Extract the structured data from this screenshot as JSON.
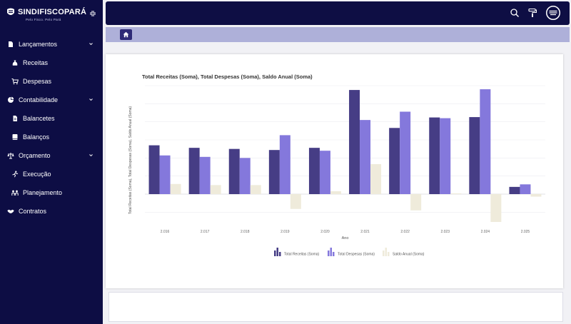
{
  "brand": {
    "name": "SINDIFISCOPARÁ",
    "slogan": "Pelo Fisco. Pelo Pará"
  },
  "sidebar": {
    "items": [
      {
        "label": "Lançamentos",
        "icon": "file-icon",
        "expandable": true
      },
      {
        "label": "Receitas",
        "icon": "money-bag-icon",
        "expandable": false
      },
      {
        "label": "Despesas",
        "icon": "cart-icon",
        "expandable": false
      },
      {
        "label": "Contabilidade",
        "icon": "pie-chart-icon",
        "expandable": true
      },
      {
        "label": "Balancetes",
        "icon": "document-icon",
        "expandable": false
      },
      {
        "label": "Balanços",
        "icon": "book-icon",
        "expandable": false
      },
      {
        "label": "Orçamento",
        "icon": "scale-icon",
        "expandable": true
      },
      {
        "label": "Execução",
        "icon": "running-icon",
        "expandable": false
      },
      {
        "label": "Planejamento",
        "icon": "people-icon",
        "expandable": false
      },
      {
        "label": "Contratos",
        "icon": "handshake-icon",
        "expandable": false
      }
    ]
  },
  "topbar": {
    "icons": [
      "search-icon",
      "paint-roller-icon",
      "avatar-icon"
    ]
  },
  "colors": {
    "sidebar": "#0d0d44",
    "receitas": "#463d85",
    "despesas": "#8478dc",
    "saldo": "#efebdb",
    "crumbbar": "#aeb0d9"
  },
  "chart_data": {
    "type": "bar",
    "title": "Total Receitas (Soma), Total Despesas (Soma), Saldo Anual (Soma)",
    "xlabel": "Ano",
    "ylabel": "Total Receitas (Soma), Total Despesas (Soma), Saldo Anual (Soma)",
    "categories": [
      "2.016",
      "2.017",
      "2.018",
      "2.019",
      "2.020",
      "2.021",
      "2.022",
      "2.023",
      "2.024",
      "2.025"
    ],
    "ylim": [
      -75,
      300
    ],
    "grid": true,
    "legend": "bottom",
    "series": [
      {
        "name": "Total Receitas (Soma)",
        "values": [
          135,
          128,
          125,
          122,
          128,
          288,
          183,
          212,
          213,
          20
        ]
      },
      {
        "name": "Total Despesas (Soma)",
        "values": [
          107,
          103,
          100,
          163,
          120,
          205,
          228,
          210,
          290,
          27
        ]
      },
      {
        "name": "Saldo Anual (Soma)",
        "values": [
          28,
          25,
          25,
          -41,
          8,
          83,
          -45,
          2,
          -77,
          -7
        ]
      }
    ]
  }
}
